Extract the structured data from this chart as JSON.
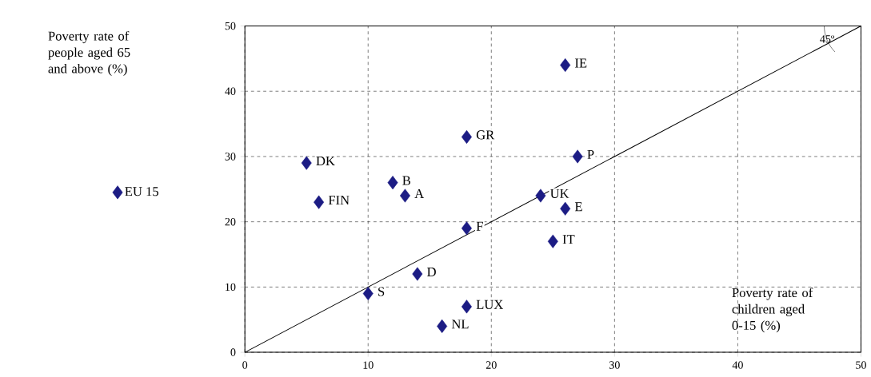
{
  "chart_data": {
    "type": "scatter",
    "xlabel": "Poverty rate of children aged 0-15 (%)",
    "xlim": [
      0,
      50
    ],
    "ylim": [
      0,
      50
    ],
    "xticks": [
      0,
      10,
      20,
      30,
      40,
      50
    ],
    "yticks": [
      0,
      10,
      20,
      30,
      40,
      50
    ],
    "grid": true,
    "legend": "left",
    "marker": "diamond",
    "series": [
      {
        "name": "EU 15",
        "color": "#1c1c84",
        "x": [
          5,
          6,
          12,
          13,
          18,
          26,
          27,
          24,
          26,
          25,
          18,
          14,
          10,
          18,
          16
        ],
        "values": [
          29,
          23,
          26,
          24,
          33,
          44,
          30,
          24,
          22,
          17,
          19,
          12,
          9,
          7,
          4
        ]
      },
      {
        "type": "line",
        "marker": "none",
        "color": "#000000",
        "x": [
          0,
          50
        ],
        "values": [
          0,
          50
        ]
      }
    ],
    "annotations": [
      "Poverty rate of people aged 65 and above (%)",
      {
        "text": "DK",
        "x": 5,
        "y": 29
      },
      {
        "text": "FIN",
        "x": 6,
        "y": 23
      },
      {
        "text": "B",
        "x": 12,
        "y": 26
      },
      {
        "text": "A",
        "x": 13,
        "y": 24
      },
      {
        "text": "GR",
        "x": 18,
        "y": 33
      },
      {
        "text": "IE",
        "x": 26,
        "y": 44
      },
      {
        "text": "P",
        "x": 27,
        "y": 30
      },
      {
        "text": "UK",
        "x": 24,
        "y": 24
      },
      {
        "text": "E",
        "x": 26,
        "y": 22
      },
      {
        "text": "IT",
        "x": 25,
        "y": 17
      },
      {
        "text": "F",
        "x": 18,
        "y": 19
      },
      {
        "text": "D",
        "x": 14,
        "y": 12
      },
      {
        "text": "S",
        "x": 10,
        "y": 9
      },
      {
        "text": "LUX",
        "x": 18,
        "y": 7
      },
      {
        "text": "NL",
        "x": 16,
        "y": 4
      },
      "45º"
    ]
  }
}
